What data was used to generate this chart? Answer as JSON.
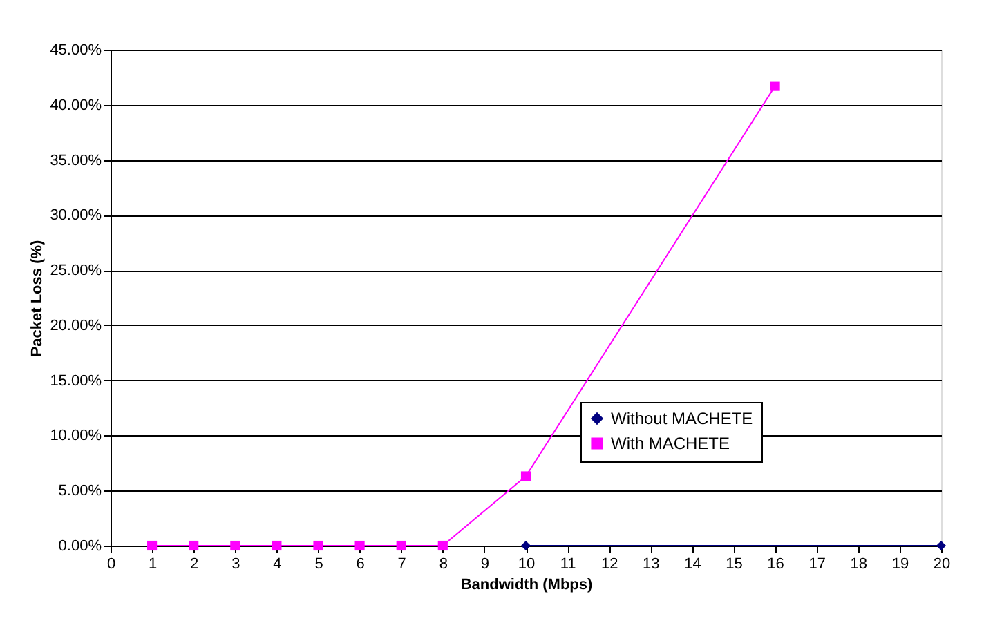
{
  "chart_data": {
    "type": "line",
    "xlabel": "Bandwidth (Mbps)",
    "ylabel": "Packet Loss (%)",
    "series": [
      {
        "name": "Without MACHETE",
        "color": "#000080",
        "marker": "diamond",
        "x": [
          10,
          20
        ],
        "values": [
          0,
          0
        ]
      },
      {
        "name": "With MACHETE",
        "color": "#ff00ff",
        "marker": "square",
        "x": [
          1,
          2,
          3,
          4,
          5,
          6,
          7,
          8,
          10,
          16
        ],
        "values": [
          0,
          0,
          0,
          0,
          0,
          0,
          0,
          0,
          6.3,
          41.7
        ]
      }
    ],
    "xlim": [
      0,
      20
    ],
    "xticks": [
      0,
      1,
      2,
      3,
      4,
      5,
      6,
      7,
      8,
      9,
      10,
      11,
      12,
      13,
      14,
      15,
      16,
      17,
      18,
      19,
      20
    ],
    "ylim": [
      0,
      45
    ],
    "yticks": [
      {
        "value": 0,
        "label": "0.00%"
      },
      {
        "value": 5,
        "label": "5.00%"
      },
      {
        "value": 10,
        "label": "10.00%"
      },
      {
        "value": 15,
        "label": "15.00%"
      },
      {
        "value": 20,
        "label": "20.00%"
      },
      {
        "value": 25,
        "label": "25.00%"
      },
      {
        "value": 30,
        "label": "30.00%"
      },
      {
        "value": 35,
        "label": "35.00%"
      },
      {
        "value": 40,
        "label": "40.00%"
      },
      {
        "value": 45,
        "label": "45.00%"
      }
    ],
    "grid": "y",
    "legend": "bottom right",
    "line_style": "solid"
  }
}
